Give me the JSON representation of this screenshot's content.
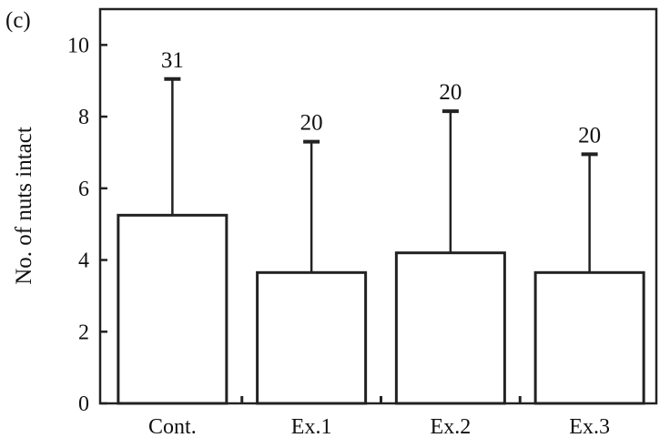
{
  "panel_label": "(c)",
  "chart_data": {
    "type": "bar",
    "title": "",
    "xlabel": "",
    "ylabel": "No. of nuts intact",
    "categories": [
      "Cont.",
      "Ex.1",
      "Ex.2",
      "Ex.3"
    ],
    "values": [
      5.25,
      3.65,
      4.2,
      3.65
    ],
    "error_upper": [
      9.05,
      7.3,
      8.15,
      6.95
    ],
    "sample_sizes": [
      "31",
      "20",
      "20",
      "20"
    ],
    "ylim": [
      0,
      11
    ],
    "yticks": [
      "0",
      "2",
      "4",
      "6",
      "8",
      "10"
    ],
    "grid": false,
    "legend": "none",
    "colors": {
      "bar_fill": "#ffffff",
      "stroke": "#222222"
    }
  }
}
